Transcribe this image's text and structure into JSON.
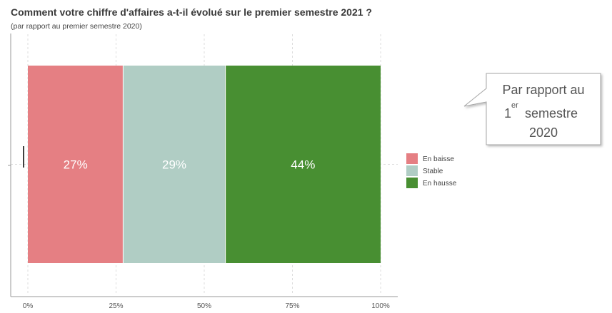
{
  "chart_data": {
    "type": "bar",
    "orientation": "horizontal",
    "stacked": true,
    "title": "Comment votre chiffre d'affaires a-t-il évolué sur le premier semestre 2021 ?",
    "subtitle": "(par rapport au premier semestre 2020)",
    "categories": [
      ""
    ],
    "series": [
      {
        "name": "En baisse",
        "values": [
          27
        ],
        "color": "#e57f83",
        "label": "27%"
      },
      {
        "name": "Stable",
        "values": [
          29
        ],
        "color": "#b0cdc4",
        "label": "29%"
      },
      {
        "name": "En hausse",
        "values": [
          44
        ],
        "color": "#488f32",
        "label": "44%"
      }
    ],
    "xlim": [
      0,
      100
    ],
    "x_ticks": [
      0,
      25,
      50,
      75,
      100
    ],
    "x_tick_labels": [
      "0%",
      "25%",
      "50%",
      "75%",
      "100%"
    ],
    "xlabel": "",
    "ylabel": "",
    "grid": true,
    "legend_position": "right"
  },
  "callout": {
    "line1": "Par rapport au",
    "line2_number": "1",
    "line2_superscript": "er",
    "line2_word": "semestre",
    "line3": "2020"
  }
}
